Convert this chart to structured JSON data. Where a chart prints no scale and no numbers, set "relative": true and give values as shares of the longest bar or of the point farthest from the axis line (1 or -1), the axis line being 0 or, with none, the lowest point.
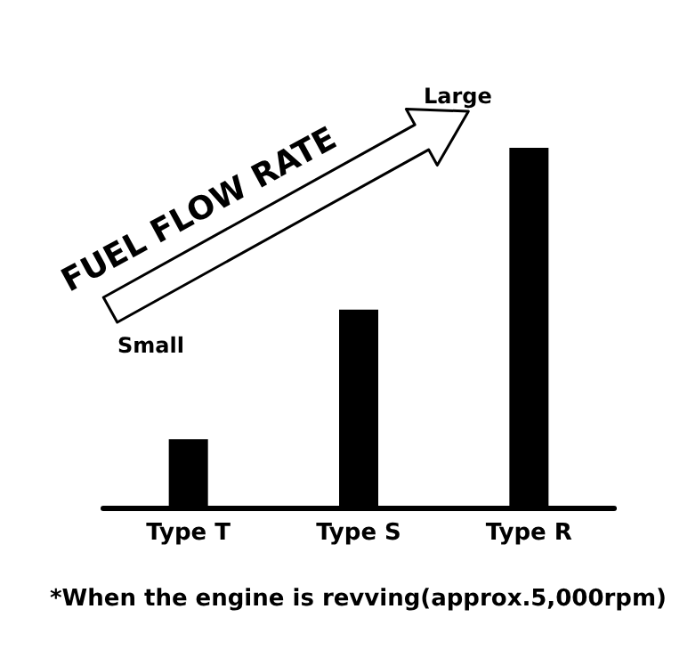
{
  "chart_data": {
    "type": "bar",
    "title": "FUEL FLOW RATE",
    "categories": [
      "Type T",
      "Type S",
      "Type R"
    ],
    "values": [
      0.19,
      0.55,
      1
    ],
    "color": "#000000",
    "relative": true,
    "annotations": [
      "Small",
      "Large",
      "*When the engine is revving(approx.5,000rpm)"
    ]
  }
}
